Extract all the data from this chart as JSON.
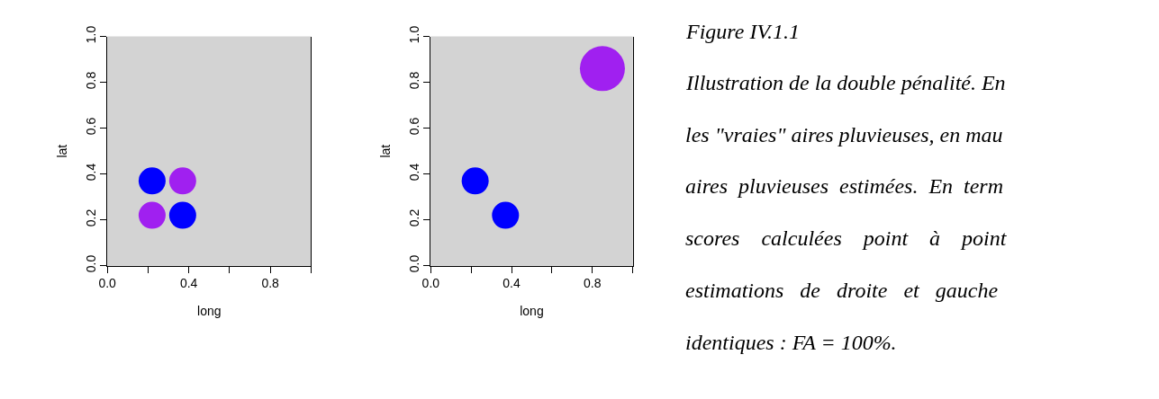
{
  "chart_data": [
    {
      "type": "scatter",
      "xlabel": "long",
      "ylabel": "lat",
      "xlim": [
        0,
        1
      ],
      "ylim": [
        0,
        1
      ],
      "marker": "circle",
      "xticks": [
        {
          "value": 0,
          "label": "0.0"
        },
        {
          "value": 0.2,
          "label": null
        },
        {
          "value": 0.4,
          "label": "0.4"
        },
        {
          "value": 0.6,
          "label": null
        },
        {
          "value": 0.8,
          "label": "0.8"
        },
        {
          "value": 1,
          "label": null
        }
      ],
      "yticks": [
        {
          "value": 0,
          "label": "0.0"
        },
        {
          "value": 0.2,
          "label": "0.2"
        },
        {
          "value": 0.4,
          "label": "0.4"
        },
        {
          "value": 0.6,
          "label": "0.6"
        },
        {
          "value": 0.8,
          "label": "0.8"
        },
        {
          "value": 1,
          "label": "1.0"
        }
      ],
      "series": [
        {
          "color": "#0000ff",
          "x": [
            0.22,
            0.37
          ],
          "values": [
            0.37,
            0.22
          ]
        },
        {
          "color": "#a020f0",
          "x": [
            0.22,
            0.37
          ],
          "values": [
            0.22,
            0.37
          ]
        }
      ]
    },
    {
      "type": "bubble",
      "xlabel": "long",
      "ylabel": "lat",
      "xlim": [
        0,
        1
      ],
      "ylim": [
        0,
        1
      ],
      "marker": "circle",
      "xticks": [
        {
          "value": 0,
          "label": "0.0"
        },
        {
          "value": 0.2,
          "label": null
        },
        {
          "value": 0.4,
          "label": "0.4"
        },
        {
          "value": 0.6,
          "label": null
        },
        {
          "value": 0.8,
          "label": "0.8"
        },
        {
          "value": 1,
          "label": null
        }
      ],
      "yticks": [
        {
          "value": 0,
          "label": "0.0"
        },
        {
          "value": 0.2,
          "label": "0.2"
        },
        {
          "value": 0.4,
          "label": "0.4"
        },
        {
          "value": 0.6,
          "label": "0.6"
        },
        {
          "value": 0.8,
          "label": "0.8"
        },
        {
          "value": 1,
          "label": "1.0"
        }
      ],
      "series": [
        {
          "color": "#0000ff",
          "x": [
            0.22,
            0.37
          ],
          "values": [
            0.37,
            0.22
          ],
          "sizes": [
            0.36,
            0.36
          ]
        },
        {
          "color": "#a020f0",
          "x": [
            0.85
          ],
          "values": [
            0.86
          ],
          "sizes": [
            1
          ]
        }
      ]
    },
    {
      "type": "other",
      "title": "Figure IV.1.1",
      "annotations": [
        "Illustration de la double pénalité. En",
        "les \"vraies\" aires pluvieuses, en mau",
        "aires  pluvieuses  estimées.  En  term",
        "scores    calculées    point    à    point",
        "estimations   de   droite   et   gauche",
        "identiques : FA = 100%."
      ]
    }
  ]
}
